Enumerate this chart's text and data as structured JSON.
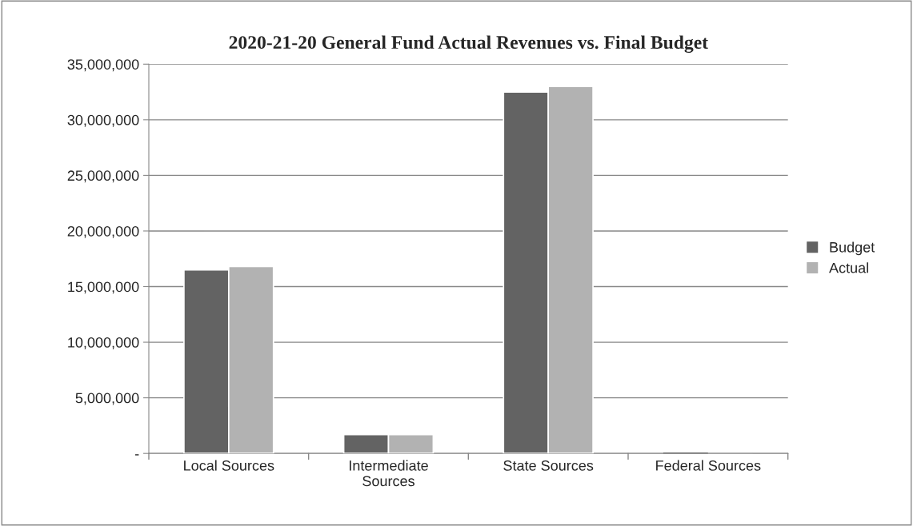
{
  "chart_data": {
    "type": "bar",
    "title": "2020-21-20 General Fund Actual Revenues vs. Final Budget",
    "categories": [
      "Local Sources",
      "Intermediate\nSources",
      "State Sources",
      "Federal Sources"
    ],
    "series": [
      {
        "name": "Budget",
        "color": "#636363",
        "values": [
          16500000,
          1700000,
          32500000,
          0
        ]
      },
      {
        "name": "Actual",
        "color": "#b2b2b2",
        "values": [
          16800000,
          1700000,
          33000000,
          0
        ]
      }
    ],
    "ylim": [
      0,
      35000000
    ],
    "yticks": [
      {
        "value": 0,
        "label": "-"
      },
      {
        "value": 5000000,
        "label": "5,000,000"
      },
      {
        "value": 10000000,
        "label": "10,000,000"
      },
      {
        "value": 15000000,
        "label": "15,000,000"
      },
      {
        "value": 20000000,
        "label": "20,000,000"
      },
      {
        "value": 25000000,
        "label": "25,000,000"
      },
      {
        "value": 30000000,
        "label": "30,000,000"
      },
      {
        "value": 35000000,
        "label": "35,000,000"
      }
    ],
    "grid": "y",
    "legend": "right"
  }
}
